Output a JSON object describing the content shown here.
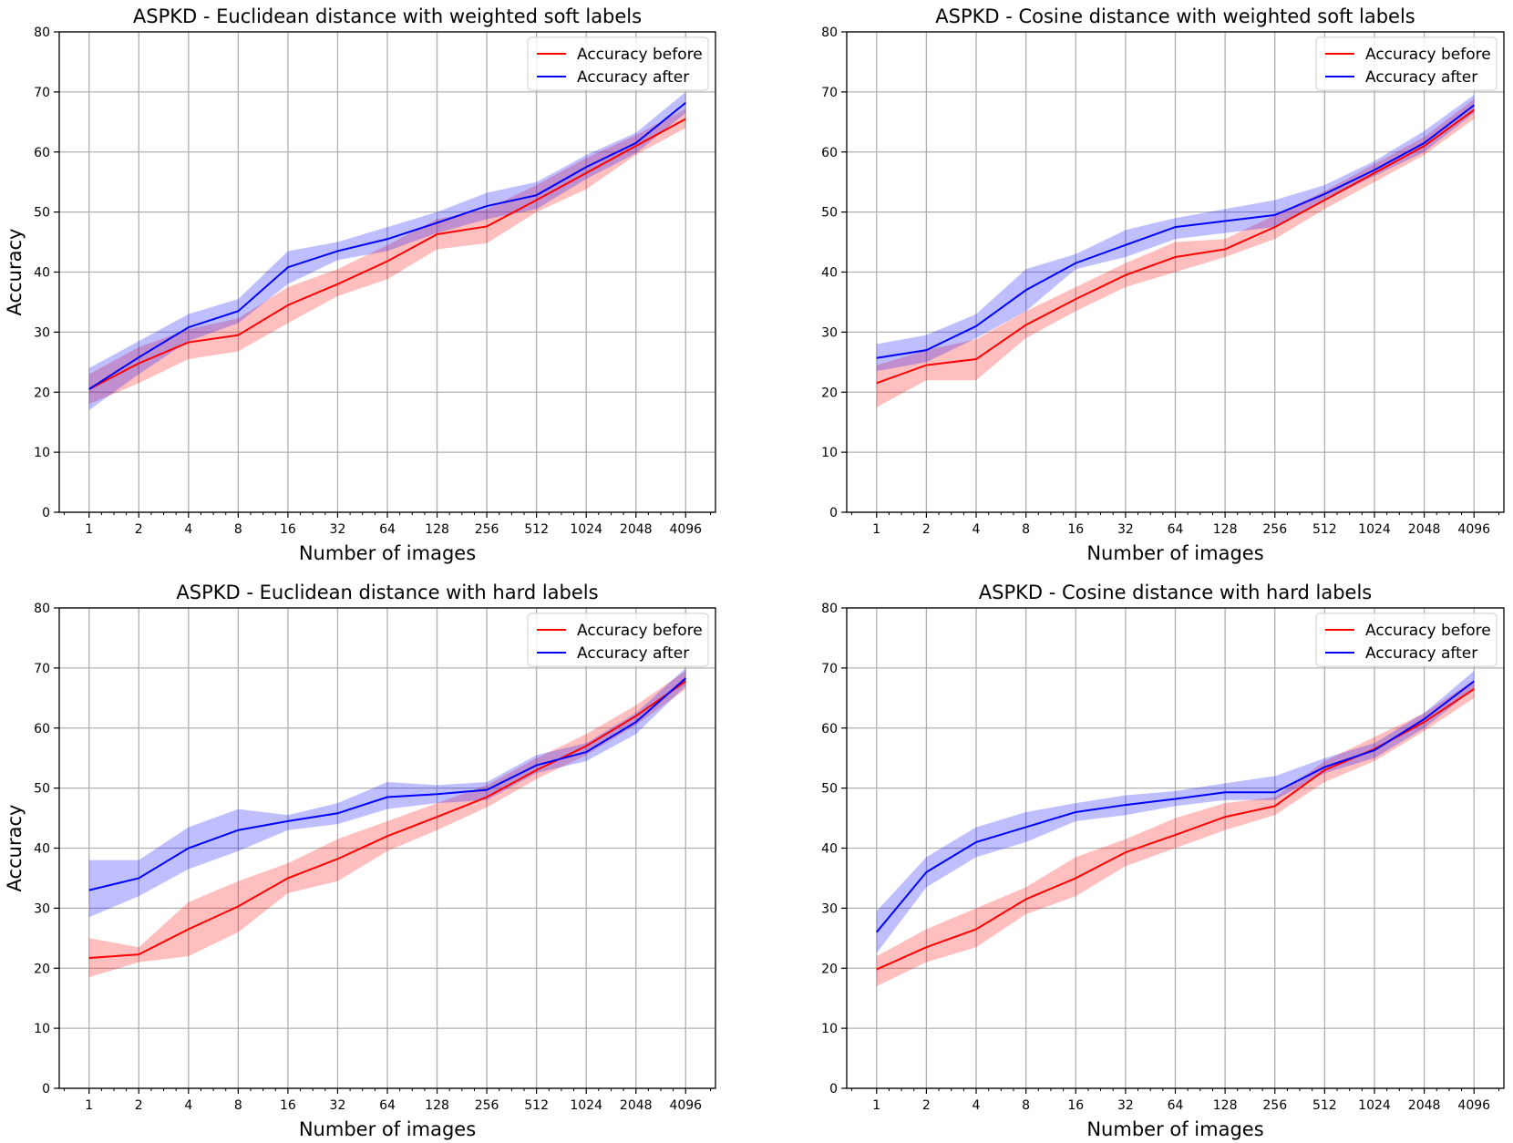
{
  "chart_data": [
    {
      "type": "line",
      "title": "ASPKD - Euclidean distance with weighted soft labels",
      "xlabel": "Number of images",
      "ylabel": "Accuracy",
      "x_scale": "log2",
      "x": [
        1,
        2,
        4,
        8,
        16,
        32,
        64,
        128,
        256,
        512,
        1024,
        2048,
        4096
      ],
      "ylim": [
        0,
        80
      ],
      "yticks": [
        0,
        10,
        20,
        30,
        40,
        50,
        60,
        70,
        80
      ],
      "grid": true,
      "legend": "top-right",
      "series": [
        {
          "name": "Accuracy before",
          "color": "#ff0000",
          "values": [
            20.5,
            24.8,
            28.3,
            29.5,
            34.5,
            38.0,
            41.8,
            46.3,
            47.6,
            52.0,
            56.5,
            61.0,
            65.5
          ],
          "lower": [
            18.0,
            21.5,
            25.5,
            26.8,
            31.5,
            36.0,
            38.8,
            43.8,
            44.8,
            50.0,
            53.8,
            59.5,
            64.0
          ],
          "upper": [
            23.0,
            27.5,
            30.5,
            32.3,
            37.5,
            40.5,
            44.5,
            48.8,
            50.5,
            54.5,
            59.0,
            62.8,
            67.2
          ]
        },
        {
          "name": "Accuracy after",
          "color": "#0000ff",
          "values": [
            20.5,
            25.8,
            30.8,
            33.5,
            40.8,
            43.5,
            45.5,
            48.2,
            51.0,
            52.8,
            57.5,
            61.5,
            68.2
          ],
          "lower": [
            17.0,
            23.0,
            28.5,
            31.5,
            38.0,
            42.0,
            43.5,
            46.5,
            48.8,
            50.5,
            55.5,
            59.8,
            66.5
          ],
          "upper": [
            24.0,
            28.5,
            33.0,
            35.5,
            43.5,
            45.0,
            47.5,
            50.0,
            53.2,
            55.0,
            59.5,
            63.2,
            70.0
          ]
        }
      ]
    },
    {
      "type": "line",
      "title": "ASPKD - Cosine distance with weighted soft labels",
      "xlabel": "Number of images",
      "ylabel": "",
      "x_scale": "log2",
      "x": [
        1,
        2,
        4,
        8,
        16,
        32,
        64,
        128,
        256,
        512,
        1024,
        2048,
        4096
      ],
      "ylim": [
        0,
        80
      ],
      "yticks": [
        0,
        10,
        20,
        30,
        40,
        50,
        60,
        70,
        80
      ],
      "grid": true,
      "legend": "top-right",
      "series": [
        {
          "name": "Accuracy before",
          "color": "#ff0000",
          "values": [
            21.5,
            24.5,
            25.5,
            31.2,
            35.5,
            39.5,
            42.5,
            43.8,
            47.5,
            52.0,
            56.5,
            61.0,
            67.0
          ],
          "lower": [
            17.5,
            22.0,
            22.0,
            29.0,
            33.5,
            37.5,
            40.0,
            42.5,
            45.5,
            50.5,
            55.0,
            59.5,
            65.5
          ],
          "upper": [
            24.5,
            27.0,
            28.8,
            33.5,
            37.5,
            41.5,
            45.0,
            45.5,
            49.5,
            53.5,
            58.0,
            62.5,
            68.8
          ]
        },
        {
          "name": "Accuracy after",
          "color": "#0000ff",
          "values": [
            25.7,
            27.0,
            31.0,
            37.0,
            41.5,
            44.5,
            47.5,
            48.5,
            49.5,
            53.0,
            57.0,
            61.5,
            67.8
          ],
          "lower": [
            23.5,
            25.0,
            29.0,
            33.5,
            40.5,
            42.5,
            45.5,
            46.5,
            47.5,
            52.0,
            56.0,
            60.0,
            66.5
          ],
          "upper": [
            28.0,
            29.5,
            33.0,
            40.5,
            43.0,
            47.0,
            49.0,
            50.5,
            52.0,
            54.5,
            58.5,
            63.5,
            69.5
          ]
        }
      ]
    },
    {
      "type": "line",
      "title": "ASPKD - Euclidean distance with hard labels",
      "xlabel": "Number of images",
      "ylabel": "Accuracy",
      "x_scale": "log2",
      "x": [
        1,
        2,
        4,
        8,
        16,
        32,
        64,
        128,
        256,
        512,
        1024,
        2048,
        4096
      ],
      "ylim": [
        0,
        80
      ],
      "yticks": [
        0,
        10,
        20,
        30,
        40,
        50,
        60,
        70,
        80
      ],
      "grid": true,
      "legend": "top-right",
      "series": [
        {
          "name": "Accuracy before",
          "color": "#ff0000",
          "values": [
            21.7,
            22.3,
            26.5,
            30.3,
            35.0,
            38.2,
            42.0,
            45.2,
            48.5,
            53.0,
            57.0,
            62.0,
            67.8
          ],
          "lower": [
            18.5,
            21.0,
            22.0,
            26.0,
            32.5,
            34.5,
            39.5,
            43.0,
            46.8,
            51.5,
            55.5,
            60.5,
            66.5
          ],
          "upper": [
            25.0,
            23.5,
            31.0,
            34.5,
            37.5,
            41.5,
            44.5,
            47.5,
            50.5,
            55.0,
            59.0,
            63.8,
            69.5
          ]
        },
        {
          "name": "Accuracy after",
          "color": "#0000ff",
          "values": [
            33.0,
            35.0,
            40.0,
            43.0,
            44.5,
            45.8,
            48.5,
            49.0,
            49.7,
            53.8,
            56.0,
            61.0,
            68.3
          ],
          "lower": [
            28.5,
            32.0,
            36.5,
            39.5,
            43.0,
            44.0,
            46.5,
            47.5,
            48.0,
            52.5,
            54.5,
            59.0,
            67.0
          ],
          "upper": [
            38.0,
            38.0,
            43.5,
            46.5,
            45.5,
            47.5,
            51.0,
            50.5,
            51.0,
            55.5,
            57.5,
            62.5,
            70.0
          ]
        }
      ]
    },
    {
      "type": "line",
      "title": "ASPKD - Cosine distance with hard labels",
      "xlabel": "Number of images",
      "ylabel": "",
      "x_scale": "log2",
      "x": [
        1,
        2,
        4,
        8,
        16,
        32,
        64,
        128,
        256,
        512,
        1024,
        2048,
        4096
      ],
      "ylim": [
        0,
        80
      ],
      "yticks": [
        0,
        10,
        20,
        30,
        40,
        50,
        60,
        70,
        80
      ],
      "grid": true,
      "legend": "top-right",
      "series": [
        {
          "name": "Accuracy before",
          "color": "#ff0000",
          "values": [
            19.8,
            23.5,
            26.5,
            31.5,
            35.0,
            39.3,
            42.2,
            45.2,
            47.0,
            53.0,
            56.5,
            61.0,
            66.5
          ],
          "lower": [
            17.0,
            21.0,
            23.5,
            29.0,
            32.0,
            37.0,
            40.0,
            43.0,
            45.5,
            51.0,
            54.5,
            59.5,
            65.0
          ],
          "upper": [
            22.0,
            26.5,
            30.0,
            33.5,
            38.5,
            41.5,
            45.0,
            47.5,
            48.5,
            54.5,
            58.5,
            62.5,
            68.0
          ]
        },
        {
          "name": "Accuracy after",
          "color": "#0000ff",
          "values": [
            26.0,
            36.0,
            41.0,
            43.5,
            46.0,
            47.2,
            48.2,
            49.3,
            49.3,
            53.5,
            56.3,
            61.5,
            67.8
          ],
          "lower": [
            22.5,
            33.5,
            38.5,
            41.0,
            44.5,
            45.5,
            47.0,
            48.0,
            48.0,
            52.5,
            55.0,
            60.0,
            66.5
          ],
          "upper": [
            29.5,
            38.5,
            43.5,
            46.0,
            47.5,
            48.8,
            49.5,
            50.8,
            52.0,
            55.0,
            57.5,
            62.5,
            69.5
          ]
        }
      ]
    }
  ]
}
